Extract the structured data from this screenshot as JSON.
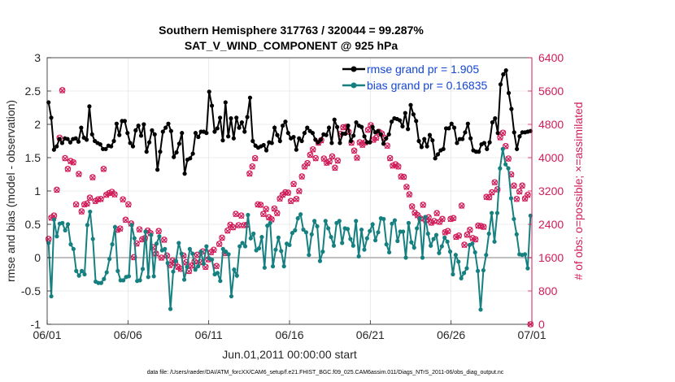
{
  "chart_data": {
    "type": "line",
    "title": "Southern Hemisphere 317763 / 320044 = 99.287%",
    "subtitle": "SAT_V_WIND_COMPONENT @ 925 hPa",
    "xlabel": "Jun.01,2011 00:00:00 start",
    "ylabel_left": "rmse and bias (model - observation)",
    "ylabel_right": "# of obs: o=possible; ×=assimilated",
    "x_ticks": [
      "06/01",
      "06/06",
      "06/11",
      "06/16",
      "06/21",
      "06/26",
      "07/01"
    ],
    "y_ticks_left": [
      "-1",
      "-0.5",
      "0",
      "0.5",
      "1",
      "1.5",
      "2",
      "2.5",
      "3"
    ],
    "y_ticks_right": [
      "0",
      "800",
      "1600",
      "2400",
      "3200",
      "4000",
      "4800",
      "5600",
      "6400"
    ],
    "ylim_left": [
      -1,
      3
    ],
    "ylim_right": [
      0,
      6400
    ],
    "xlim_days": [
      0,
      30
    ],
    "grid": true,
    "legend_position": "top-right",
    "footnote": "data file: /Users/raeder/DAI/ATM_forcXX/CAM6_setup/f.e21.FHIST_BGC.f09_025.CAM6assim.011/Diags_NTrS_2011-06/obs_diag_output.nc",
    "colors": {
      "rmse": "#000000",
      "bias": "#168080",
      "obs": "#d01c5a",
      "zero": "#bfbfbf"
    },
    "series": [
      {
        "name": "rmse grand pr = 1.905",
        "values": [
          2.33,
          2.1,
          1.62,
          1.67,
          1.78,
          1.72,
          1.79,
          1.78,
          1.73,
          1.78,
          1.79,
          1.74,
          1.95,
          1.8,
          1.77,
          2.27,
          1.85,
          1.75,
          1.72,
          1.7,
          1.63,
          1.63,
          1.68,
          1.67,
          1.75,
          2.01,
          1.84,
          2.05,
          2.05,
          1.87,
          1.72,
          1.67,
          1.91,
          1.98,
          1.83,
          2.0,
          1.59,
          1.73,
          1.91,
          1.85,
          1.32,
          1.59,
          1.89,
          1.95,
          2.01,
          1.9,
          1.51,
          1.58,
          1.71,
          1.87,
          1.26,
          1.47,
          1.49,
          1.56,
          1.87,
          1.81,
          1.89,
          1.89,
          1.87,
          2.49,
          2.28,
          1.89,
          1.94,
          2.1,
          1.76,
          2.33,
          1.82,
          2.09,
          1.79,
          2.1,
          1.95,
          2.03,
          1.89,
          2.11,
          2.4,
          1.75,
          1.68,
          1.65,
          1.67,
          1.69,
          1.61,
          1.73,
          1.72,
          1.95,
          1.84,
          1.75,
          1.98,
          2.04,
          1.87,
          1.79,
          1.81,
          1.62,
          1.79,
          1.75,
          1.87,
          1.95,
          1.9,
          1.87,
          1.77,
          1.73,
          1.77,
          1.85,
          1.84,
          1.95,
          1.72,
          2.07,
          1.96,
          1.72,
          1.86,
          1.86,
          1.98,
          1.75,
          1.83,
          2.03,
          1.98,
          1.96,
          1.82,
          1.73,
          1.73,
          1.96,
          1.88,
          1.9,
          1.85,
          1.71,
          1.79,
          1.85,
          2.04,
          2.09,
          2.08,
          2.06,
          1.97,
          2.17,
          1.93,
          2.29,
          2.15,
          2.05,
          1.75,
          1.66,
          1.78,
          1.67,
          1.84,
          1.76,
          1.49,
          1.55,
          1.61,
          1.63,
          1.94,
          1.94,
          2.01,
          1.95,
          1.72,
          1.78,
          1.78,
          1.88,
          2.01,
          1.79,
          1.61,
          1.59,
          1.59,
          1.7,
          1.72,
          1.63,
          1.73,
          2.03,
          2.09,
          1.87,
          2.6,
          2.75,
          2.81,
          2.47,
          2.23,
          1.88,
          1.63,
          1.82,
          1.88,
          1.88,
          1.89,
          1.9
        ]
      },
      {
        "name": "bias grand pr = 0.16835",
        "values": [
          0.22,
          -0.58,
          0.57,
          0.32,
          0.51,
          0.52,
          0.41,
          0.5,
          0.2,
          0.13,
          -0.2,
          -0.27,
          -0.2,
          -0.25,
          0.49,
          0.69,
          0.28,
          -0.36,
          -0.38,
          -0.38,
          -0.32,
          -0.22,
          -0.02,
          0.2,
          0.46,
          -0.2,
          -0.34,
          -0.34,
          -0.29,
          -0.28,
          0.49,
          0.29,
          -0.35,
          -0.34,
          -0.17,
          0.39,
          -0.29,
          0.34,
          -0.28,
          0.21,
          0.32,
          0.11,
          0.13,
          -0.08,
          -0.77,
          -0.21,
          -0.05,
          0.22,
          0.06,
          -0.33,
          -0.14,
          0.13,
          0.06,
          -0.18,
          -0.13,
          0.09,
          -0.09,
          0.17,
          -0.01,
          -0.03,
          -0.25,
          -0.23,
          -0.35,
          0.13,
          0.09,
          0.05,
          -0.58,
          -0.18,
          -0.27,
          0.17,
          0.22,
          0.17,
          0.64,
          0.29,
          0.36,
          0.11,
          0.14,
          0.31,
          -0.15,
          0.48,
          0.52,
          -0.13,
          0.12,
          0.3,
          0.1,
          -0.13,
          0.21,
          0.19,
          0.37,
          0.41,
          0.59,
          0.65,
          0.42,
          0.38,
          0.04,
          0.35,
          0.55,
          0.47,
          -0.05,
          0.09,
          0.55,
          0.44,
          0.31,
          0.18,
          0.52,
          0.55,
          0.22,
          0.44,
          0.43,
          0.28,
          0.18,
          0.55,
          0.02,
          0.42,
          0.12,
          0.29,
          0.4,
          0.5,
          0.26,
          0.38,
          0.59,
          0.58,
          0.2,
          0.08,
          0.51,
          0.56,
          0.25,
          0.39,
          0.39,
          0.0,
          0.52,
          0.23,
          0.15,
          0.44,
          0.59,
          0.0,
          0.61,
          0.36,
          0.18,
          0.28,
          0.34,
          0.07,
          0.17,
          0.3,
          0.24,
          0.09,
          -0.25,
          0.04,
          -0.06,
          -0.31,
          -0.23,
          -0.16,
          0.19,
          0.21,
          0.08,
          -0.2,
          -0.78,
          -0.19,
          0.04,
          0.36,
          0.67,
          0.24,
          0.67,
          1.34,
          1.63,
          1.4,
          1.34,
          0.89,
          0.58,
          0.35,
          0.05,
          0.04,
          0.05,
          -0.16,
          0.63
        ]
      },
      {
        "name": "obs possible",
        "marker": "o",
        "values": [
          2050,
          2560,
          2610,
          3230,
          4480,
          5620,
          3990,
          3730,
          3920,
          3890,
          2880,
          3610,
          2710,
          2880,
          2900,
          3040,
          3530,
          2960,
          3000,
          3010,
          3730,
          3110,
          3150,
          3180,
          3120,
          2270,
          2300,
          3000,
          2510,
          2880,
          2420,
          1610,
          1940,
          2280,
          2040,
          2070,
          2250,
          2190,
          1850,
          1700,
          2240,
          1600,
          2030,
          1650,
          1420,
          1530,
          1470,
          1380,
          1330,
          1650,
          1490,
          1280,
          1410,
          1510,
          1670,
          1490,
          1750,
          1380,
          1560,
          1730,
          1790,
          1400,
          1930,
          2080,
          1710,
          2250,
          2390,
          2330,
          2650,
          2380,
          2610,
          2380,
          2390,
          3620,
          3790,
          3990,
          2880,
          2870,
          2650,
          2770,
          2570,
          2520,
          2780,
          2670,
          3020,
          3110,
          3170,
          3160,
          2960,
          3370,
          3010,
          3200,
          3550,
          3790,
          3870,
          4070,
          4200,
          3990,
          4360,
          4420,
          3980,
          3880,
          3910,
          4030,
          3760,
          3930,
          4570,
          4730,
          4740,
          4620,
          4360,
          4170,
          4000,
          4370,
          4310,
          4370,
          4670,
          4780,
          4430,
          4480,
          4620,
          4580,
          4480,
          4290,
          3990,
          3810,
          3840,
          3790,
          3550,
          3540,
          3300,
          3120,
          2830,
          2680,
          2620,
          2540,
          2870,
          2500,
          2570,
          2440,
          2480,
          2670,
          2460,
          2530,
          2210,
          2240,
          2530,
          2550,
          2100,
          2130,
          2850,
          1910,
          2150,
          2270,
          2070,
          2040,
          2370,
          2360,
          2340,
          3060,
          3050,
          3170,
          3410,
          3240,
          4490,
          4600,
          4280,
          3980,
          3600,
          3330,
          3010,
          3190,
          3330,
          3020,
          3110,
          0
        ]
      },
      {
        "name": "obs assimilated",
        "marker": "x",
        "values": [
          2040,
          2550,
          2600,
          3220,
          4470,
          5610,
          3980,
          3720,
          3910,
          3880,
          2870,
          3600,
          2700,
          2870,
          2890,
          3030,
          3520,
          2950,
          2990,
          3000,
          3720,
          3100,
          3140,
          3170,
          3110,
          2260,
          2290,
          2990,
          2500,
          2870,
          2410,
          1600,
          1930,
          2270,
          2030,
          2060,
          2240,
          2180,
          1840,
          1690,
          2230,
          1590,
          2020,
          1640,
          1410,
          1520,
          1460,
          1370,
          1320,
          1640,
          1480,
          1270,
          1400,
          1500,
          1660,
          1480,
          1740,
          1370,
          1550,
          1720,
          1780,
          1390,
          1920,
          2070,
          1700,
          2240,
          2380,
          2320,
          2640,
          2370,
          2600,
          2370,
          2380,
          3610,
          3780,
          3980,
          2870,
          2860,
          2640,
          2760,
          2560,
          2510,
          2770,
          2660,
          3010,
          3100,
          3160,
          3150,
          2950,
          3360,
          3000,
          3190,
          3540,
          3780,
          3860,
          4060,
          4190,
          3980,
          4350,
          4410,
          3970,
          3870,
          3900,
          4020,
          3750,
          3920,
          4560,
          4720,
          4730,
          4610,
          4350,
          4160,
          3990,
          4360,
          4300,
          4360,
          4660,
          4770,
          4420,
          4470,
          4610,
          4570,
          4470,
          4280,
          3980,
          3800,
          3830,
          3780,
          3540,
          3530,
          3290,
          3110,
          2820,
          2670,
          2610,
          2530,
          2860,
          2490,
          2560,
          2430,
          2470,
          2660,
          2450,
          2520,
          2200,
          2230,
          2520,
          2540,
          2090,
          2120,
          2840,
          1900,
          2140,
          2260,
          2060,
          2030,
          2360,
          2350,
          2330,
          3050,
          3040,
          3160,
          3400,
          3230,
          4480,
          4590,
          4270,
          3970,
          3590,
          3320,
          3000,
          3180,
          3320,
          3010,
          3100,
          0
        ]
      }
    ]
  }
}
